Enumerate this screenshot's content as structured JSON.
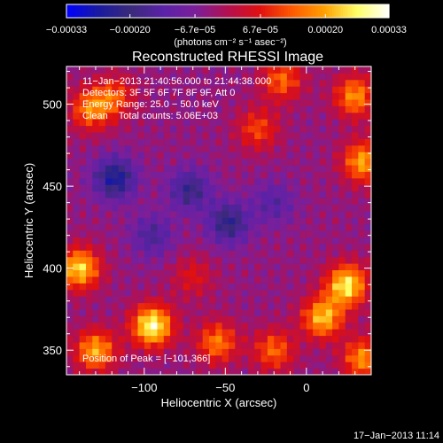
{
  "chart_data": {
    "type": "heatmap",
    "title": "Reconstructed RHESSI Image",
    "xlabel": "Heliocentric X (arcsec)",
    "ylabel": "Heliocentric Y (arcsec)",
    "xlim": [
      -148,
      40
    ],
    "ylim": [
      335,
      523
    ],
    "x_ticks": [
      -100,
      -50,
      0
    ],
    "x_tick_labels": [
      "−100",
      "−50",
      "0"
    ],
    "y_ticks": [
      350,
      400,
      450,
      500
    ],
    "y_tick_labels": [
      "350",
      "400",
      "450",
      "500"
    ],
    "colorbar": {
      "range": [
        -0.00033,
        0.00033
      ],
      "ticks": [
        -0.00033,
        -0.0002,
        -6.7e-05,
        6.7e-05,
        0.0002,
        0.00033
      ],
      "tick_labels": [
        "−0.00033",
        "−0.00020",
        "−6.7e−05",
        "6.7e−05",
        "0.00020",
        "0.00033"
      ],
      "unit_label": "(photons cm⁻² s⁻¹ asec⁻²)",
      "colormap": [
        "#0000ff",
        "#1a1aa0",
        "#3a2a7a",
        "#5a22a8",
        "#7b1f9a",
        "#b31050",
        "#e01010",
        "#ff5a00",
        "#ffa000",
        "#ffff66",
        "#ffffff"
      ]
    },
    "annotations": [
      "11−Jan−2013 21:40:56.000 to 21:44:38.000",
      "Detectors: 3F 5F 6F 7F 8F 9F, Att 0",
      "Energy Range: 25.0 − 50.0 keV",
      "Clean    Total counts: 5.06E+03"
    ],
    "peak_label": "Position of Peak = [−101,366]",
    "peak": [
      -101,
      366
    ],
    "features": [
      {
        "x": -95,
        "y": 365,
        "value": 0.00033
      },
      {
        "x": -140,
        "y": 400,
        "value": 0.00028
      },
      {
        "x": -130,
        "y": 350,
        "value": 0.00024
      },
      {
        "x": -133,
        "y": 497,
        "value": 0.0002
      },
      {
        "x": -118,
        "y": 505,
        "value": 0.00015
      },
      {
        "x": 25,
        "y": 390,
        "value": 0.0003
      },
      {
        "x": 10,
        "y": 370,
        "value": 0.00026
      },
      {
        "x": 35,
        "y": 465,
        "value": 0.00024
      },
      {
        "x": 30,
        "y": 505,
        "value": 0.00022
      },
      {
        "x": -15,
        "y": 515,
        "value": 0.00018
      },
      {
        "x": -30,
        "y": 485,
        "value": 0.00015
      },
      {
        "x": -55,
        "y": 355,
        "value": 0.0002
      },
      {
        "x": -20,
        "y": 350,
        "value": 0.00018
      },
      {
        "x": 35,
        "y": 345,
        "value": 0.00022
      },
      {
        "x": -70,
        "y": 395,
        "value": 0.0001
      },
      {
        "x": -118,
        "y": 455,
        "value": -0.00022
      },
      {
        "x": -72,
        "y": 448,
        "value": -0.00016
      },
      {
        "x": -48,
        "y": 428,
        "value": -0.00018
      },
      {
        "x": -95,
        "y": 420,
        "value": -0.00012
      },
      {
        "x": -20,
        "y": 440,
        "value": -0.0001
      }
    ],
    "background": -4e-05
  },
  "timestamp": "17−Jan−2013 11:14"
}
